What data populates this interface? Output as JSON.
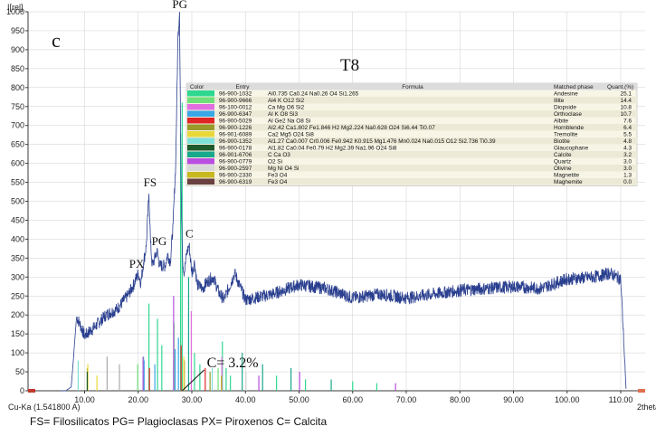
{
  "chart_data": {
    "type": "line",
    "ylabel": "I[rel]",
    "xlabel": "2theta",
    "source_label": "Cu-Ka (1.541800 A)",
    "xlim": [
      0,
      120
    ],
    "ylim": [
      0,
      1000
    ],
    "xticks": [
      "10.00",
      "20.00",
      "30.00",
      "40.00",
      "50.00",
      "60.00",
      "70.00",
      "80.00",
      "90.00",
      "100.00",
      "110.00"
    ],
    "yticks": [
      "0",
      "50",
      "100",
      "150",
      "200",
      "250",
      "300",
      "350",
      "400",
      "450",
      "500",
      "550",
      "600",
      "650",
      "700",
      "750",
      "800",
      "850",
      "900",
      "950",
      "1000"
    ],
    "panel_label": "c",
    "sample_label": "T8",
    "pattern": {
      "x": [
        5.5,
        6.5,
        7.5,
        8.0,
        8.5,
        9.0,
        10,
        12,
        14,
        16,
        18,
        19,
        20,
        20.5,
        21,
        21.5,
        22,
        22.3,
        22.6,
        23,
        23.5,
        24,
        25,
        25.5,
        26,
        26.5,
        27,
        27.4,
        27.7,
        28,
        28.3,
        28.6,
        29,
        29.5,
        30,
        30.5,
        31,
        32,
        33,
        34,
        35,
        36,
        38,
        40,
        45,
        50,
        55,
        60,
        65,
        70,
        75,
        80,
        85,
        90,
        95,
        100,
        105,
        108,
        110,
        111
      ],
      "y": [
        0,
        0,
        10,
        100,
        195,
        180,
        145,
        170,
        200,
        215,
        250,
        275,
        310,
        285,
        340,
        380,
        520,
        390,
        330,
        345,
        370,
        330,
        330,
        360,
        340,
        440,
        600,
        930,
        1000,
        530,
        340,
        310,
        360,
        385,
        310,
        340,
        280,
        270,
        290,
        300,
        260,
        240,
        310,
        240,
        255,
        280,
        270,
        245,
        255,
        245,
        255,
        265,
        270,
        275,
        270,
        295,
        300,
        310,
        295,
        5
      ]
    },
    "annotations": [
      {
        "text": "PG",
        "x": 27.7,
        "y": 1000
      },
      {
        "text": "FS",
        "x": 22.0,
        "y": 520
      },
      {
        "text": "PG",
        "x": 23.7,
        "y": 370
      },
      {
        "text": "C",
        "x": 29.5,
        "y": 385
      },
      {
        "text": "PX",
        "x": 20.0,
        "y": 310
      },
      {
        "text": "C= 3.2%",
        "x": 31.0,
        "y": 40
      }
    ],
    "table": {
      "headers": [
        "Color",
        "Entry",
        "Formula",
        "Matched phase",
        "Quant.(%)"
      ],
      "rows": [
        {
          "color": "#2fd890",
          "entry": "96-900-1032",
          "formula": "Al0.735 Ca0.24 Na0.26 O4 Si1.265",
          "phase": "Andesine",
          "quant": "25.1"
        },
        {
          "color": "#6ee07a",
          "entry": "96-900-9666",
          "formula": "Al4 K O12 Si2",
          "phase": "Illite",
          "quant": "14.4"
        },
        {
          "color": "#e26fe0",
          "entry": "96-100-0012",
          "formula": "Ca Mg O6 Si2",
          "phase": "Diopside",
          "quant": "10.8"
        },
        {
          "color": "#3aa7e6",
          "entry": "96-900-6347",
          "formula": "Al K O8 Si3",
          "phase": "Orthoclase",
          "quant": "10.7"
        },
        {
          "color": "#e02525",
          "entry": "96-900-5029",
          "formula": "Al Ge2 Na O8 Si",
          "phase": "Albite",
          "quant": "7.6"
        },
        {
          "color": "#9a9a2a",
          "entry": "96-900-1226",
          "formula": "Al2.42 Ca1.802 Fe1.846 H2 Mg2.224 Na0.628 O24 Si6.44 Ti0.07",
          "phase": "Hornblende",
          "quant": "6.4"
        },
        {
          "color": "#e8d83a",
          "entry": "96-901-6089",
          "formula": "Ca2 Mg5 O24 Si8",
          "phase": "Tremolite",
          "quant": "5.5"
        },
        {
          "color": "#7fe0d8",
          "entry": "96-900-1352",
          "formula": "Al1.27 Ca0.007 Cr0.006 Fe0.942 K0.915 Mg1.476 Mn0.024 Na0.015 O12 Si2.736 Ti0.39",
          "phase": "Biotite",
          "quant": "4.8"
        },
        {
          "color": "#1e5a2a",
          "entry": "96-900-0178",
          "formula": "Al1.82 Ca0.04 Fe0.79 H2 Mg2.39 Na1.96 O24 Si8",
          "phase": "Glaucophane",
          "quant": "4.3"
        },
        {
          "color": "#18a88c",
          "entry": "96-901-6706",
          "formula": "C Ca O3",
          "phase": "Calcite",
          "quant": "3.2"
        },
        {
          "color": "#b84fe0",
          "entry": "96-900-0779",
          "formula": "O2 Si",
          "phase": "Quartz",
          "quant": "3.0"
        },
        {
          "color": "#d8d8d8",
          "entry": "96-900-2597",
          "formula": "Mg Ni O4 Si",
          "phase": "Olivine",
          "quant": "3.0"
        },
        {
          "color": "#c8b820",
          "entry": "96-900-2330",
          "formula": "Fe3 O4",
          "phase": "Magnetite",
          "quant": "1.3"
        },
        {
          "color": "#6a4040",
          "entry": "96-900-6319",
          "formula": "Fe3 O4",
          "phase": "Maghemite",
          "quant": "0.0"
        }
      ]
    },
    "reference_lines": [
      {
        "x": 27.9,
        "h": 680,
        "color": "#2fd890"
      },
      {
        "x": 28.2,
        "h": 760,
        "color": "#2fd890"
      },
      {
        "x": 22.0,
        "h": 230,
        "color": "#2fd890"
      },
      {
        "x": 23.6,
        "h": 190,
        "color": "#2fd890"
      },
      {
        "x": 24.4,
        "h": 120,
        "color": "#2fd890"
      },
      {
        "x": 21.0,
        "h": 90,
        "color": "#2fd890"
      },
      {
        "x": 30.5,
        "h": 100,
        "color": "#2fd890"
      },
      {
        "x": 35.7,
        "h": 130,
        "color": "#2fd890"
      },
      {
        "x": 36.4,
        "h": 60,
        "color": "#2fd890"
      },
      {
        "x": 26.7,
        "h": 180,
        "color": "#6ee07a"
      },
      {
        "x": 19.9,
        "h": 70,
        "color": "#6ee07a"
      },
      {
        "x": 34.9,
        "h": 60,
        "color": "#6ee07a"
      },
      {
        "x": 29.9,
        "h": 210,
        "color": "#e26fe0"
      },
      {
        "x": 35.6,
        "h": 90,
        "color": "#e26fe0"
      },
      {
        "x": 27.5,
        "h": 140,
        "color": "#3aa7e6"
      },
      {
        "x": 26.9,
        "h": 110,
        "color": "#3aa7e6"
      },
      {
        "x": 23.1,
        "h": 70,
        "color": "#3aa7e6"
      },
      {
        "x": 21.1,
        "h": 80,
        "color": "#3aa7e6"
      },
      {
        "x": 28.0,
        "h": 120,
        "color": "#e02525"
      },
      {
        "x": 22.1,
        "h": 60,
        "color": "#e02525"
      },
      {
        "x": 10.5,
        "h": 60,
        "color": "#9a9a2a"
      },
      {
        "x": 28.6,
        "h": 80,
        "color": "#9a9a2a"
      },
      {
        "x": 33.4,
        "h": 50,
        "color": "#9a9a2a"
      },
      {
        "x": 10.6,
        "h": 70,
        "color": "#e8d83a"
      },
      {
        "x": 28.5,
        "h": 90,
        "color": "#e8d83a"
      },
      {
        "x": 8.8,
        "h": 80,
        "color": "#7fe0d8"
      },
      {
        "x": 26.6,
        "h": 80,
        "color": "#7fe0d8"
      },
      {
        "x": 33.8,
        "h": 60,
        "color": "#7fe0d8"
      },
      {
        "x": 10.5,
        "h": 50,
        "color": "#1e5a2a"
      },
      {
        "x": 29.4,
        "h": 300,
        "color": "#18a88c"
      },
      {
        "x": 39.4,
        "h": 100,
        "color": "#18a88c"
      },
      {
        "x": 43.2,
        "h": 70,
        "color": "#18a88c"
      },
      {
        "x": 48.5,
        "h": 60,
        "color": "#18a88c"
      },
      {
        "x": 26.6,
        "h": 250,
        "color": "#b84fe0"
      },
      {
        "x": 20.9,
        "h": 90,
        "color": "#b84fe0"
      },
      {
        "x": 50.1,
        "h": 50,
        "color": "#b84fe0"
      },
      {
        "x": 40.1,
        "h": 50,
        "color": "#d8d8d8"
      },
      {
        "x": 35.5,
        "h": 40,
        "color": "#c8b820"
      },
      {
        "x": 16.5,
        "h": 70,
        "color": "#aaaaaa"
      },
      {
        "x": 14.2,
        "h": 90,
        "color": "#aaaaaa"
      },
      {
        "x": 12.3,
        "h": 40,
        "color": "#e8d83a"
      },
      {
        "x": 31.5,
        "h": 70,
        "color": "#2fd890"
      },
      {
        "x": 32.5,
        "h": 60,
        "color": "#e02525"
      },
      {
        "x": 37.2,
        "h": 40,
        "color": "#2fd890"
      },
      {
        "x": 42.5,
        "h": 40,
        "color": "#b84fe0"
      },
      {
        "x": 45.8,
        "h": 40,
        "color": "#2fd890"
      },
      {
        "x": 51.2,
        "h": 30,
        "color": "#2fd890"
      },
      {
        "x": 56.0,
        "h": 30,
        "color": "#18a88c"
      },
      {
        "x": 60.0,
        "h": 25,
        "color": "#2fd890"
      },
      {
        "x": 64.5,
        "h": 20,
        "color": "#2fd890"
      },
      {
        "x": 68.0,
        "h": 20,
        "color": "#b84fe0"
      }
    ]
  },
  "footer": "FS= Filosilicatos  PG= Plagioclasas  PX= Piroxenos  C= Calcita",
  "colors": {
    "pattern": "#2a3f8f",
    "axis": "#3a3a3a",
    "grid": "#cfcfcf",
    "table_bg": "#f7f5e6",
    "table_header": "#dcdcdc"
  }
}
